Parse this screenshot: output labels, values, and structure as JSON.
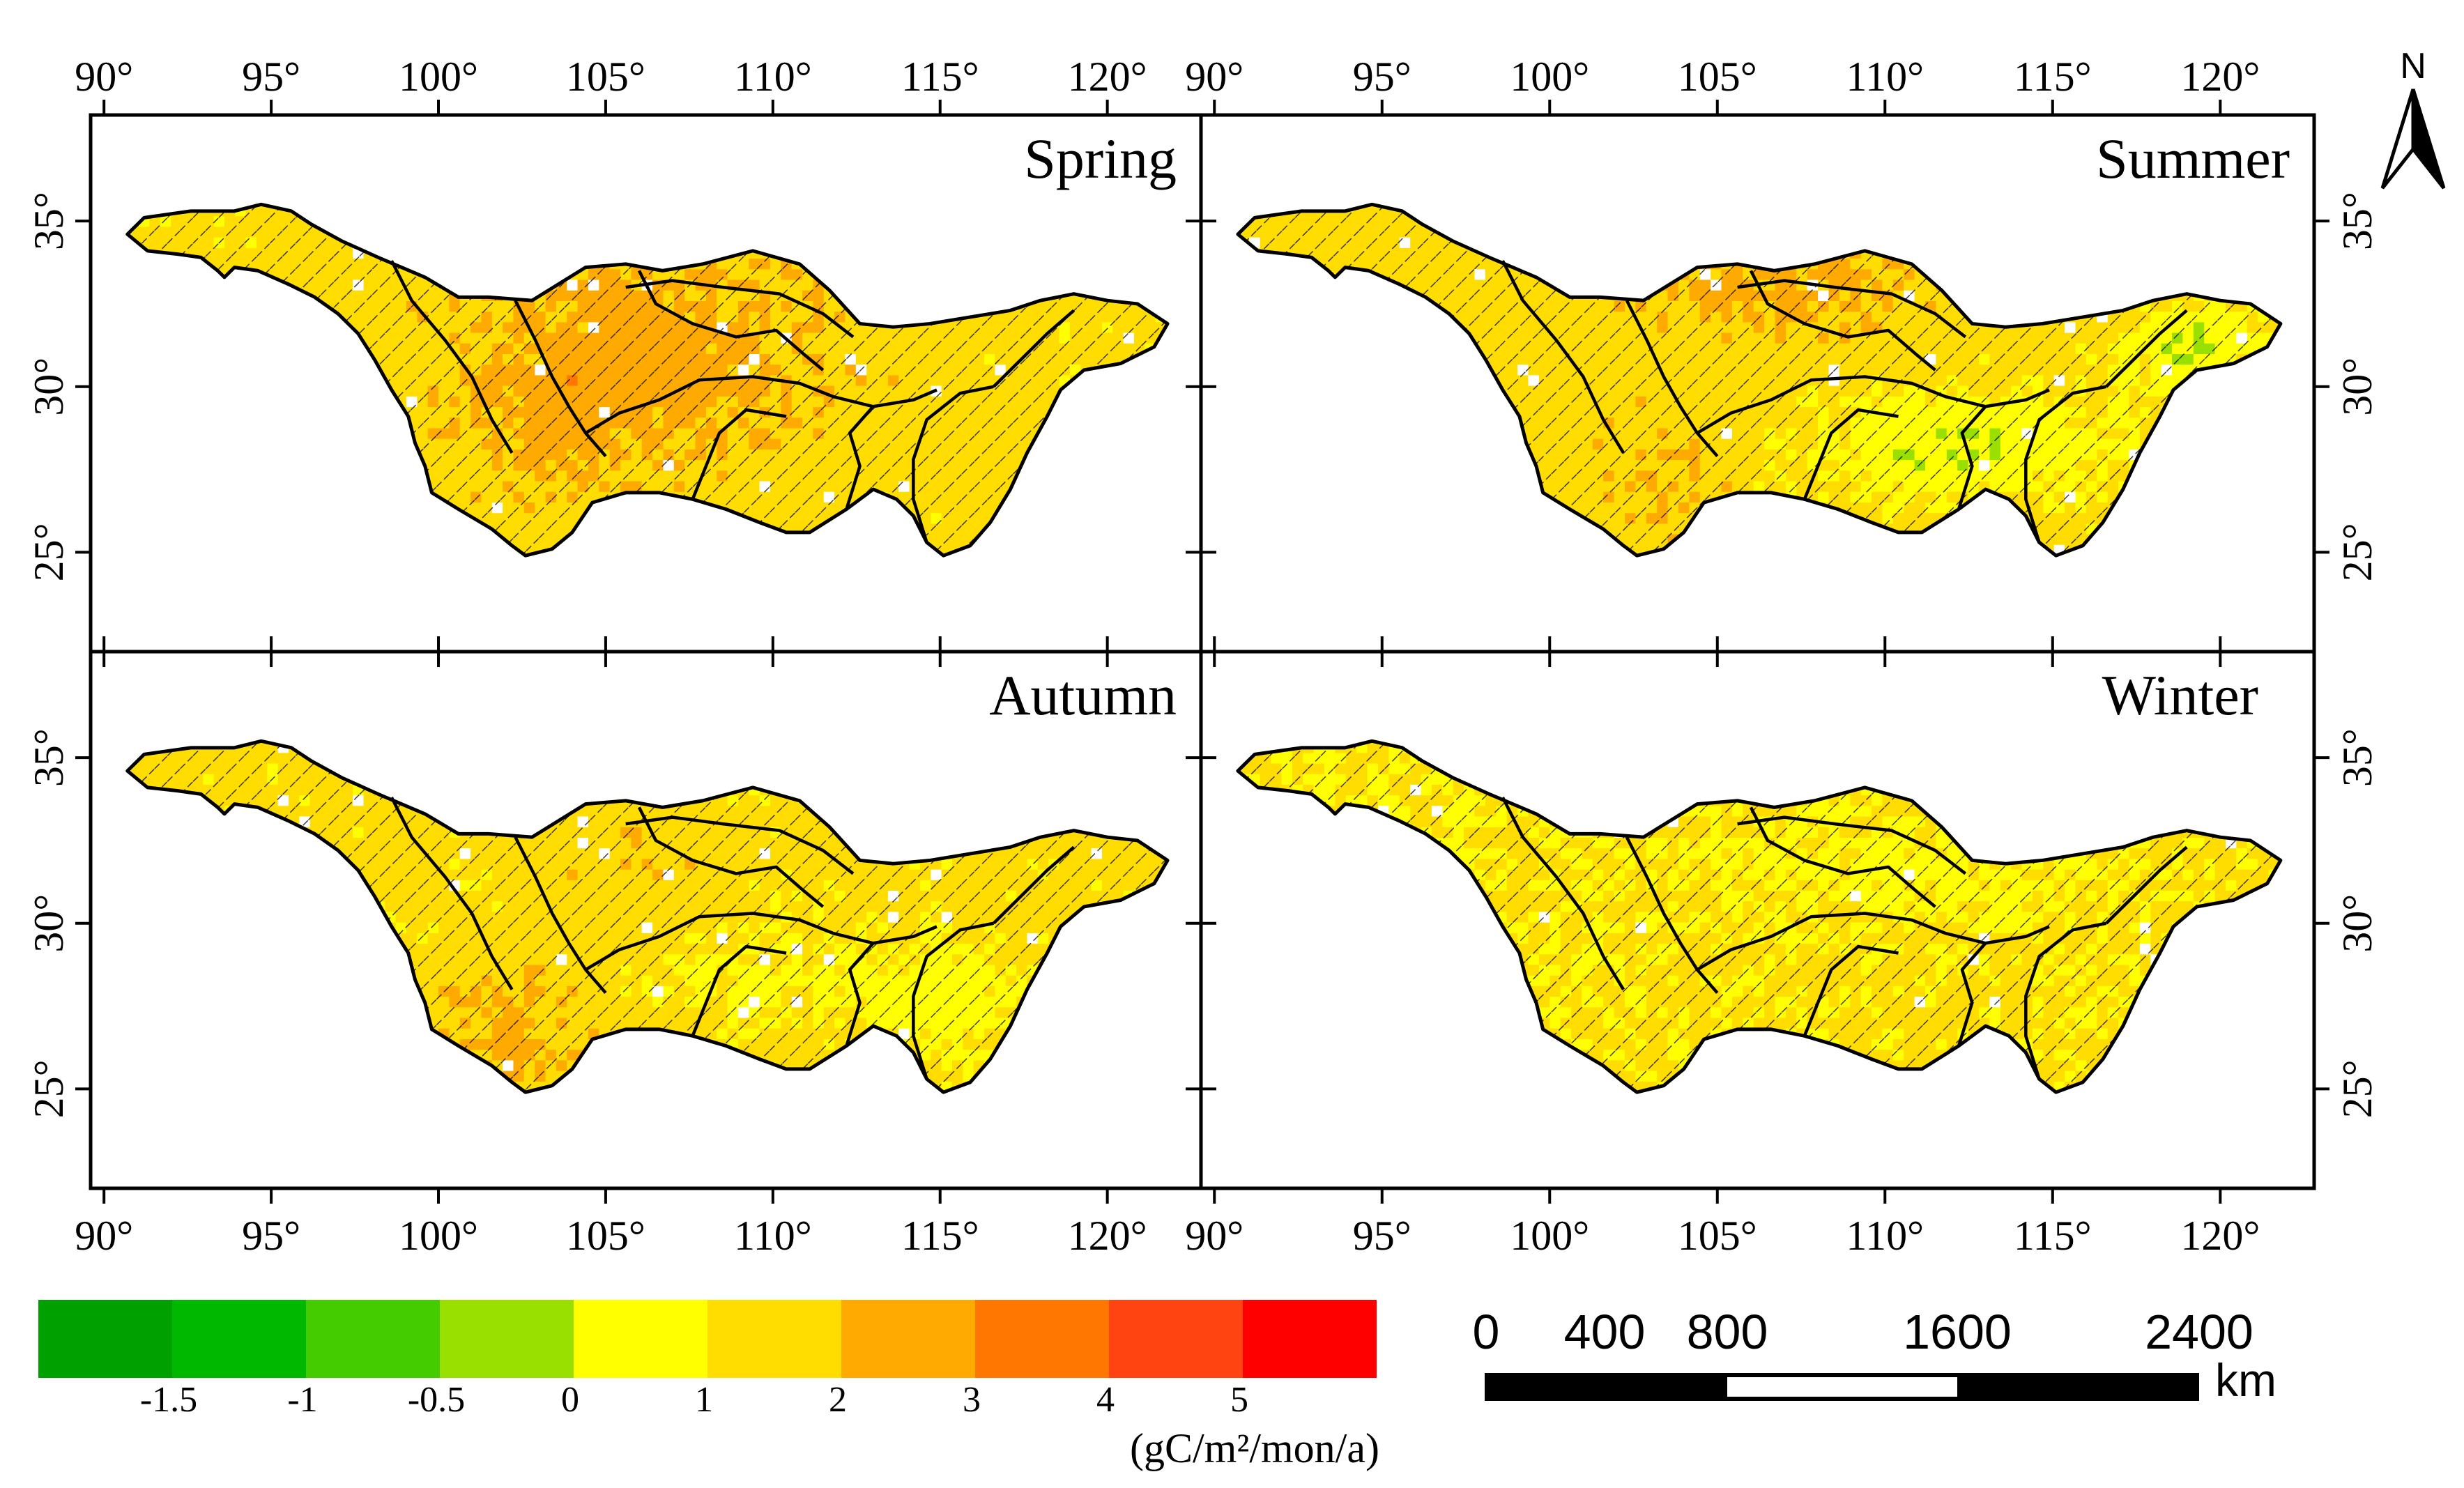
{
  "panels": [
    {
      "label": "Spring",
      "regime": "spring"
    },
    {
      "label": "Summer",
      "regime": "summer"
    },
    {
      "label": "Autumn",
      "regime": "autumn"
    },
    {
      "label": "Winter",
      "regime": "winter"
    }
  ],
  "lon_ticks": [
    90,
    95,
    100,
    105,
    110,
    115,
    120
  ],
  "lat_ticks": [
    25,
    30,
    35
  ],
  "lon_tick_labels": [
    "90°",
    "95°",
    "100°",
    "105°",
    "110°",
    "115°",
    "120°"
  ],
  "lat_tick_labels": [
    "25°",
    "30°",
    "35°"
  ],
  "lon_range": [
    89.6,
    122.8
  ],
  "lat_range": [
    22,
    38.2
  ],
  "north_arrow": {
    "label": "N"
  },
  "legend": {
    "colors": [
      "#00a000",
      "#00b800",
      "#44cc00",
      "#99e000",
      "#ffff00",
      "#ffdd00",
      "#ffaa00",
      "#ff7700",
      "#ff4411",
      "#ff0000"
    ],
    "tick_labels": [
      "-1.5",
      "-1",
      "-0.5",
      "0",
      "1",
      "2",
      "3",
      "4",
      "5"
    ],
    "unit": "(gC/m²/mon/a)"
  },
  "scale_bar": {
    "labels": [
      "0",
      "400",
      "800",
      "1600",
      "2400"
    ],
    "unit": "km"
  },
  "basin_outline_lonlat": [
    [
      90.7,
      34.6
    ],
    [
      91.2,
      35.1
    ],
    [
      92.6,
      35.3
    ],
    [
      93.9,
      35.3
    ],
    [
      94.7,
      35.5
    ],
    [
      95.6,
      35.3
    ],
    [
      96.2,
      34.9
    ],
    [
      97.1,
      34.4
    ],
    [
      98.2,
      33.9
    ],
    [
      99.6,
      33.3
    ],
    [
      100.6,
      32.7
    ],
    [
      101.5,
      32.7
    ],
    [
      102.8,
      32.6
    ],
    [
      103.6,
      33.1
    ],
    [
      104.4,
      33.6
    ],
    [
      105.6,
      33.7
    ],
    [
      106.7,
      33.5
    ],
    [
      107.9,
      33.7
    ],
    [
      109.4,
      34.1
    ],
    [
      110.8,
      33.7
    ],
    [
      111.7,
      32.9
    ],
    [
      112.6,
      31.9
    ],
    [
      113.6,
      31.8
    ],
    [
      114.7,
      31.9
    ],
    [
      115.9,
      32.1
    ],
    [
      117.1,
      32.3
    ],
    [
      118.0,
      32.6
    ],
    [
      119.0,
      32.8
    ],
    [
      120.0,
      32.6
    ],
    [
      120.9,
      32.5
    ],
    [
      121.8,
      31.9
    ],
    [
      121.4,
      31.2
    ],
    [
      120.4,
      30.7
    ],
    [
      119.3,
      30.5
    ],
    [
      118.6,
      29.9
    ],
    [
      118.2,
      29.1
    ],
    [
      117.6,
      28.0
    ],
    [
      117.1,
      26.9
    ],
    [
      116.5,
      25.9
    ],
    [
      115.9,
      25.2
    ],
    [
      115.1,
      24.9
    ],
    [
      114.6,
      25.3
    ],
    [
      114.2,
      26.1
    ],
    [
      113.7,
      26.6
    ],
    [
      113.0,
      26.9
    ],
    [
      112.2,
      26.3
    ],
    [
      111.1,
      25.6
    ],
    [
      110.4,
      25.6
    ],
    [
      109.6,
      25.9
    ],
    [
      108.6,
      26.3
    ],
    [
      107.6,
      26.6
    ],
    [
      106.6,
      26.8
    ],
    [
      105.6,
      26.8
    ],
    [
      104.6,
      26.5
    ],
    [
      104.0,
      25.6
    ],
    [
      103.4,
      25.1
    ],
    [
      102.6,
      24.9
    ],
    [
      102.2,
      25.2
    ],
    [
      101.6,
      25.7
    ],
    [
      100.6,
      26.3
    ],
    [
      99.8,
      26.8
    ],
    [
      99.6,
      27.6
    ],
    [
      99.3,
      28.3
    ],
    [
      99.1,
      29.1
    ],
    [
      98.6,
      29.9
    ],
    [
      98.1,
      30.8
    ],
    [
      97.6,
      31.6
    ],
    [
      97.0,
      32.2
    ],
    [
      96.3,
      32.7
    ],
    [
      95.5,
      33.1
    ],
    [
      94.6,
      33.5
    ],
    [
      93.9,
      33.6
    ],
    [
      93.6,
      33.3
    ],
    [
      93.4,
      33.5
    ],
    [
      92.9,
      33.9
    ],
    [
      92.2,
      34.0
    ],
    [
      91.3,
      34.1
    ],
    [
      90.7,
      34.6
    ]
  ]
}
